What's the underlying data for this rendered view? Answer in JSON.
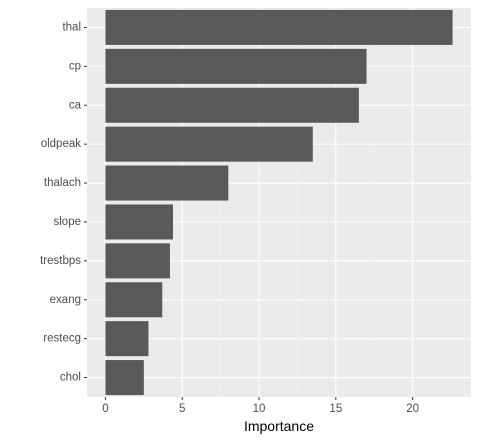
{
  "chart_data": {
    "type": "bar",
    "orientation": "horizontal",
    "title": "",
    "xlabel": "Importance",
    "ylabel": "",
    "categories": [
      "thal",
      "cp",
      "ca",
      "oldpeak",
      "thalach",
      "slope",
      "trestbps",
      "exang",
      "restecg",
      "chol"
    ],
    "values": [
      22.6,
      17.0,
      16.5,
      13.5,
      8.0,
      4.4,
      4.2,
      3.7,
      2.8,
      2.5
    ],
    "xlim": [
      -1.2,
      23.8
    ],
    "x_ticks": [
      0,
      5,
      10,
      15,
      20
    ],
    "x_tick_labels": [
      "0",
      "5",
      "10",
      "15",
      "20"
    ],
    "grid": true,
    "legend": "none",
    "colors": {
      "bar": "#595959",
      "panel_background": "#ebebeb",
      "grid_major": "#ffffff",
      "grid_minor": "#f2f2f2",
      "tick_label": "#4d4d4d",
      "axis_title": "#000000"
    }
  }
}
